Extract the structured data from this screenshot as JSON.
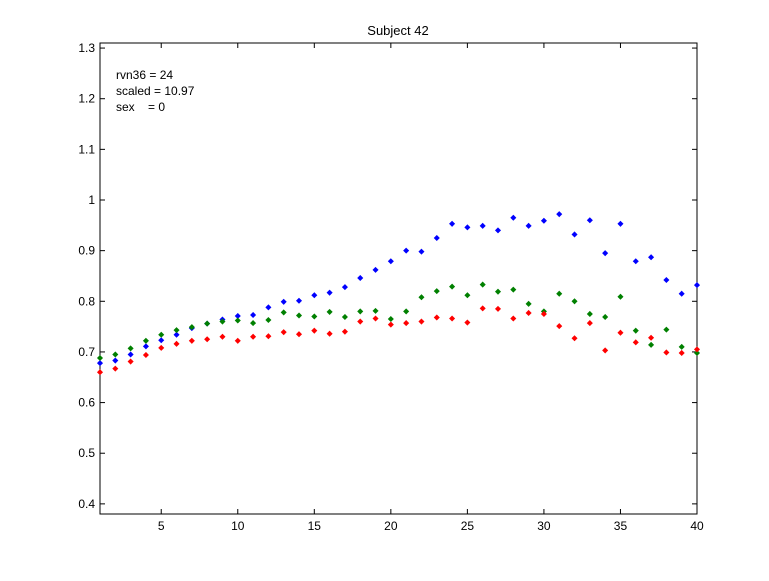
{
  "chart_data": {
    "type": "scatter",
    "title": "Subject 42",
    "xlabel": "",
    "ylabel": "",
    "xlim": [
      1,
      40
    ],
    "ylim": [
      0.38,
      1.31
    ],
    "xticks": [
      "5",
      "10",
      "15",
      "20",
      "25",
      "30",
      "35",
      "40"
    ],
    "yticks": [
      "0.4",
      "0.5",
      "0.6",
      "0.7",
      "0.8",
      "0.9",
      "1",
      "1.1",
      "1.2",
      "1.3"
    ],
    "grid": false,
    "annotations": [
      "rvn36 = 24",
      "scaled = 10.97",
      "sex    = 0"
    ],
    "x": [
      1,
      2,
      3,
      4,
      5,
      6,
      7,
      8,
      9,
      10,
      11,
      12,
      13,
      14,
      15,
      16,
      17,
      18,
      19,
      20,
      21,
      22,
      23,
      24,
      25,
      26,
      27,
      28,
      29,
      30,
      31,
      32,
      33,
      34,
      35,
      36,
      37,
      38,
      39,
      40
    ],
    "series": [
      {
        "color": "#0000ff",
        "values": [
          0.678,
          0.683,
          0.695,
          0.711,
          0.723,
          0.734,
          0.747,
          0.756,
          0.764,
          0.771,
          0.773,
          0.788,
          0.799,
          0.801,
          0.812,
          0.817,
          0.828,
          0.846,
          0.862,
          0.879,
          0.9,
          0.898,
          0.925,
          0.953,
          0.946,
          0.949,
          0.94,
          0.965,
          0.949,
          0.959,
          0.972,
          0.932,
          0.96,
          0.895,
          0.953,
          0.879,
          0.887,
          0.842,
          0.815,
          0.832
        ]
      },
      {
        "color": "#008000",
        "values": [
          0.688,
          0.695,
          0.707,
          0.722,
          0.734,
          0.743,
          0.749,
          0.756,
          0.76,
          0.762,
          0.757,
          0.763,
          0.778,
          0.772,
          0.77,
          0.779,
          0.769,
          0.78,
          0.781,
          0.765,
          0.78,
          0.808,
          0.82,
          0.829,
          0.812,
          0.833,
          0.819,
          0.823,
          0.795,
          0.78,
          0.815,
          0.8,
          0.775,
          0.769,
          0.809,
          0.742,
          0.714,
          0.744,
          0.71,
          0.698
        ]
      },
      {
        "color": "#ff0000",
        "values": [
          0.66,
          0.667,
          0.681,
          0.694,
          0.708,
          0.716,
          0.722,
          0.725,
          0.73,
          0.722,
          0.73,
          0.731,
          0.739,
          0.735,
          0.742,
          0.736,
          0.74,
          0.76,
          0.766,
          0.754,
          0.757,
          0.76,
          0.768,
          0.766,
          0.758,
          0.786,
          0.785,
          0.766,
          0.777,
          0.775,
          0.751,
          0.727,
          0.757,
          0.703,
          0.738,
          0.719,
          0.728,
          0.699,
          0.698,
          0.705
        ]
      }
    ]
  }
}
